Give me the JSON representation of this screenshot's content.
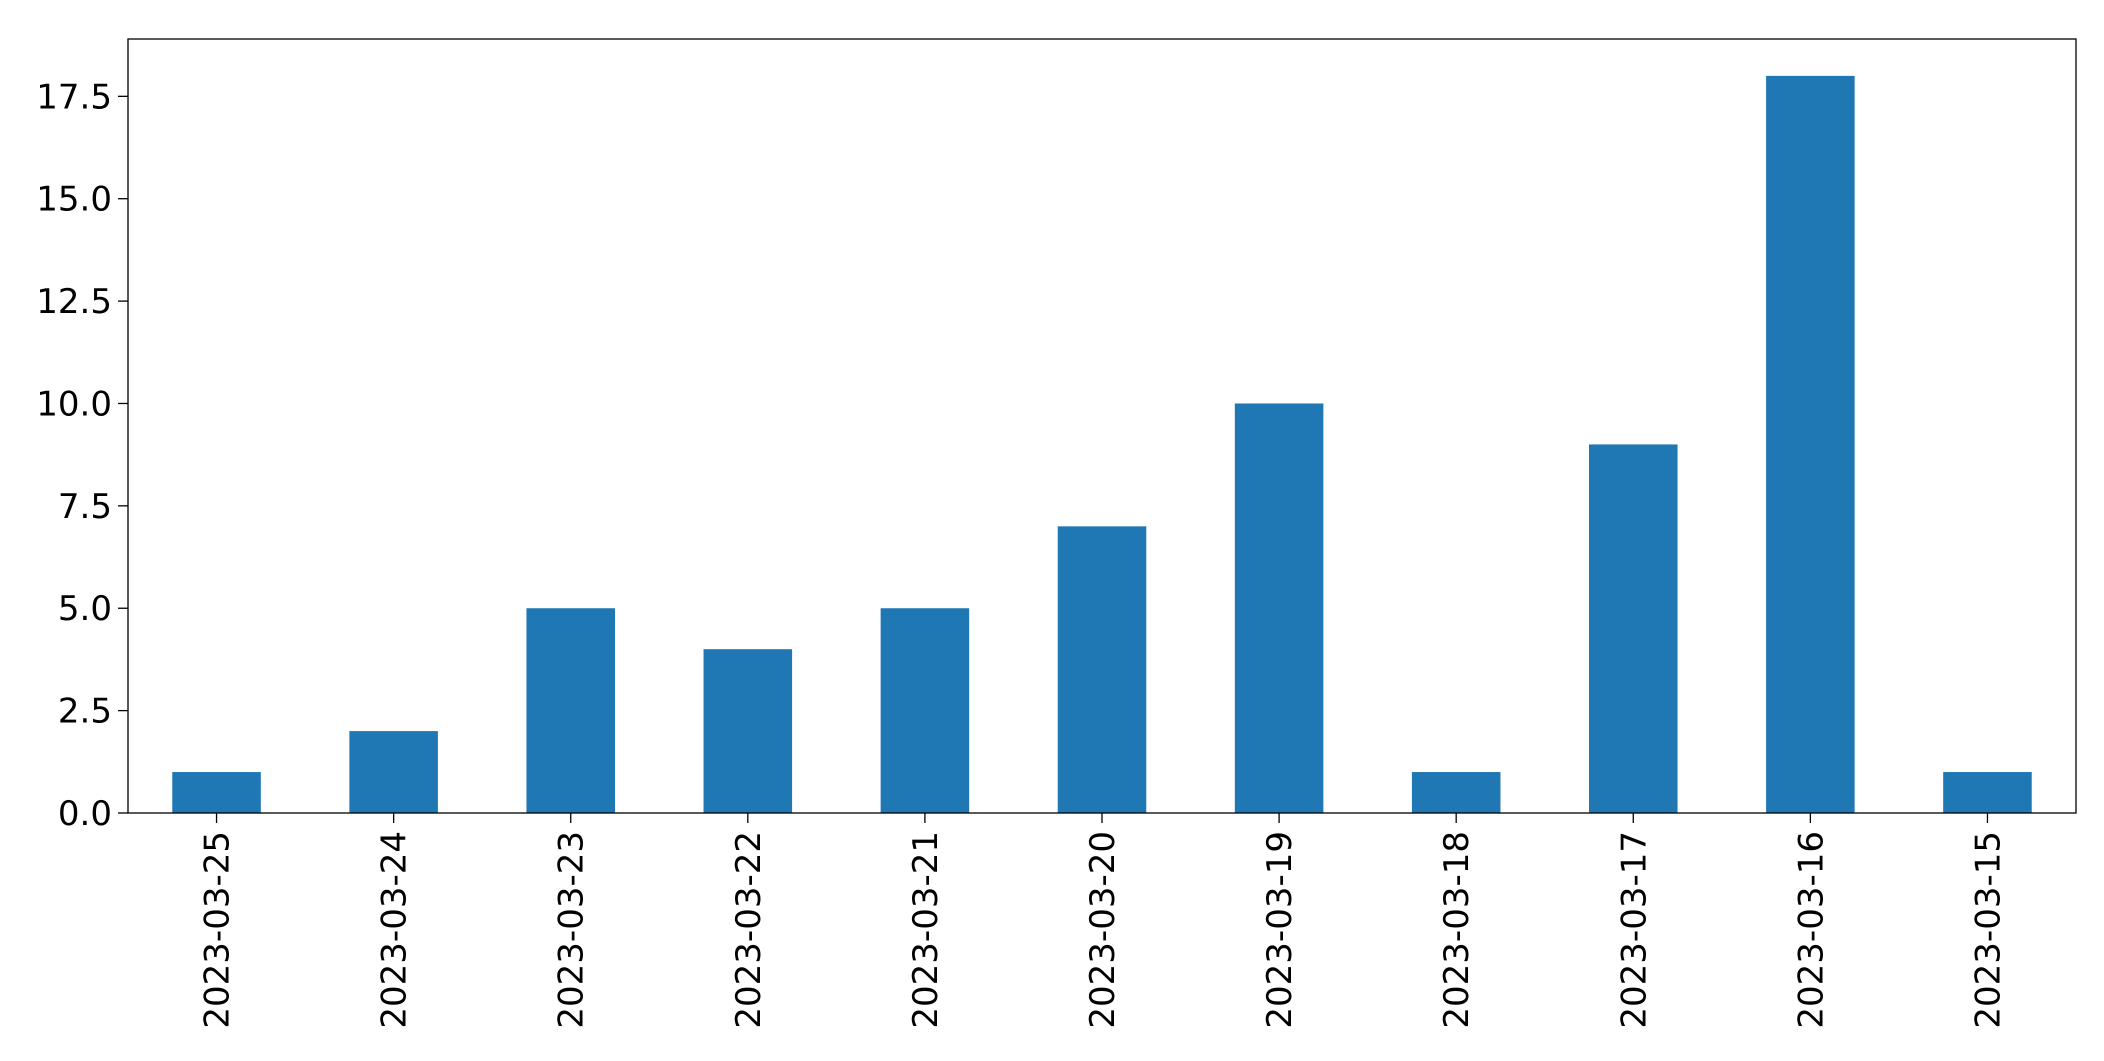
{
  "chart_data": {
    "type": "bar",
    "categories": [
      "2023-03-25",
      "2023-03-24",
      "2023-03-23",
      "2023-03-22",
      "2023-03-21",
      "2023-03-20",
      "2023-03-19",
      "2023-03-18",
      "2023-03-17",
      "2023-03-16",
      "2023-03-15"
    ],
    "values": [
      1,
      2,
      5,
      4,
      5,
      7,
      10,
      1,
      9,
      18,
      1
    ],
    "color": "#1f77b4",
    "ylim": [
      0,
      18.9
    ],
    "yticks": [
      {
        "value": 0,
        "label": "0.0"
      },
      2.5,
      {
        "value": 5,
        "label": "5.0"
      },
      7.5,
      {
        "value": 10,
        "label": "10.0"
      },
      12.5,
      {
        "value": 15,
        "label": "15.0"
      },
      17.5
    ],
    "grid": false
  }
}
